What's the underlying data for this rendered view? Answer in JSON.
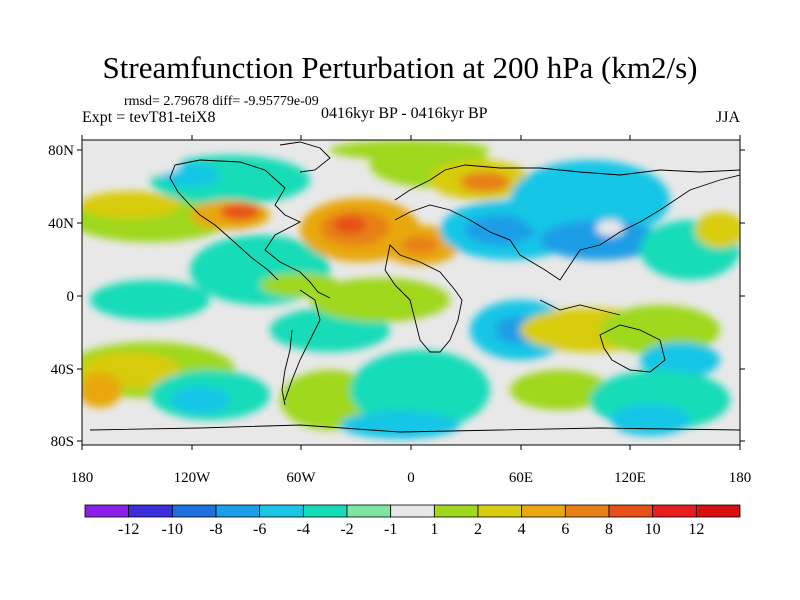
{
  "header": {
    "title": "Streamfunction Perturbation at 200 hPa (km2/s)",
    "stats": "rmsd= 2.79678 diff= -9.95779e-09",
    "experiment": "Expt = tevT81-teiX8",
    "period": "0416kyr BP - 0416kyr BP",
    "season": "JJA"
  },
  "axes": {
    "lat_labels": [
      "80N",
      "40N",
      "0",
      "40S",
      "80S"
    ],
    "lon_labels": [
      "180",
      "120W",
      "60W",
      "0",
      "60E",
      "120E",
      "180"
    ]
  },
  "colorbar": {
    "labels": [
      "-12",
      "-10",
      "-8",
      "-6",
      "-4",
      "-2",
      "-1",
      "1",
      "2",
      "4",
      "6",
      "8",
      "10",
      "12"
    ],
    "colors": [
      "#8a1fe8",
      "#3a2fd8",
      "#1e6fe0",
      "#1a9ee6",
      "#19c6e6",
      "#13dcb8",
      "#7ee6a0",
      "#e8e8e8",
      "#9fd81c",
      "#d8cc10",
      "#e8a810",
      "#e88018",
      "#e85018",
      "#e81e1e",
      "#d81010"
    ]
  },
  "colors": {
    "neutral": "#e8e8e8",
    "land_outline": "#000000"
  }
}
